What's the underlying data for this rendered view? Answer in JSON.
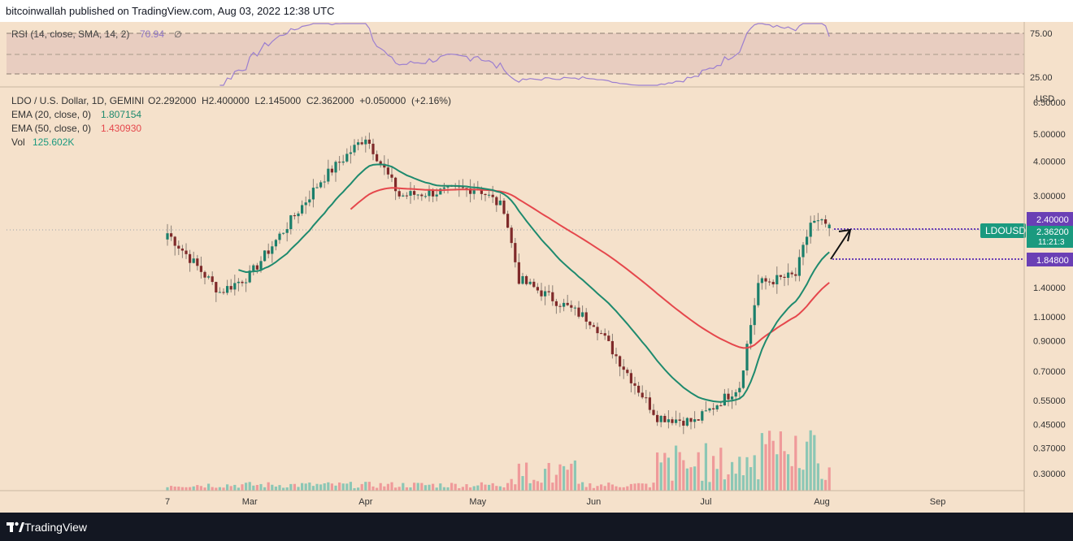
{
  "header": {
    "publisher_text": "bitcoinwallah published on TradingView.com, Aug 03, 2022 12:38 UTC"
  },
  "footer": {
    "brand": "TradingView",
    "logo_icon": "tradingview-logo-icon"
  },
  "legend": {
    "rsi_label": "RSI (14, close, SMA, 14, 2)",
    "rsi_value": "70.94",
    "rsi_suffix": "∅",
    "symbol": "LDO / U.S. Dollar, 1D, GEMINI",
    "ohlc": "O2.292000  H2.400000  L2.145000  C2.362000  +0.050000  (+2.16%)",
    "ema20_label": "EMA (20, close, 0)",
    "ema20_value": "1.807154",
    "ema50_label": "EMA (50, close, 0)",
    "ema50_value": "1.430930",
    "vol_label": "Vol",
    "vol_value": "125.602K"
  },
  "price_axis": {
    "currency": "USD",
    "ticks": [
      "6.50000",
      "5.00000",
      "4.00000",
      "3.00000",
      "1.40000",
      "1.10000",
      "0.90000",
      "0.70000",
      "0.55000",
      "0.45000",
      "0.37000",
      "0.30000"
    ]
  },
  "rsi_axis": {
    "ticks": [
      "75.00",
      "25.00"
    ]
  },
  "time_axis": {
    "labels": [
      "7",
      "Mar",
      "Apr",
      "May",
      "Jun",
      "Jul",
      "Aug",
      "Sep"
    ]
  },
  "price_labels": {
    "symbol_tag": "LDOUSD",
    "high": "2.40000",
    "last": "2.36200",
    "countdown": "11:21:3",
    "low": "1.84800"
  },
  "colors": {
    "background": "#f5e1cb",
    "up": "#1b7f6b",
    "down": "#7f2a2a",
    "ema20": "#1e8a6e",
    "ema50": "#e5474c",
    "rsi": "#9c7fd0",
    "rsi_band": "#e8cdc0",
    "level": "#6a3fb5"
  },
  "chart_data": {
    "type": "candlestick",
    "symbol": "LDO / U.S. Dollar, 1D, GEMINI",
    "y_scale": "log",
    "ylim": [
      0.26,
      7.4
    ],
    "last_candle": {
      "open": 2.292,
      "high": 2.4,
      "low": 2.145,
      "close": 2.362,
      "change": 0.05,
      "change_pct": 2.16
    },
    "key_points": [
      {
        "date": "Feb 07 2022",
        "close": 2.2
      },
      {
        "date": "Feb 21 2022",
        "close": 1.35
      },
      {
        "date": "Mar 01 2022",
        "close": 1.55
      },
      {
        "date": "Mar 20 2022",
        "close": 3.4
      },
      {
        "date": "Apr 01 2022",
        "close": 4.9
      },
      {
        "date": "Apr 10 2022",
        "close": 3.0
      },
      {
        "date": "May 01 2022",
        "close": 3.2
      },
      {
        "date": "May 08 2022",
        "close": 2.7
      },
      {
        "date": "May 12 2022",
        "close": 1.5
      },
      {
        "date": "Jun 01 2022",
        "close": 1.05
      },
      {
        "date": "Jun 13 2022",
        "close": 0.6
      },
      {
        "date": "Jun 18 2022",
        "close": 0.48
      },
      {
        "date": "Jun 28 2022",
        "close": 0.46
      },
      {
        "date": "Jul 10 2022",
        "close": 0.62
      },
      {
        "date": "Jul 15 2022",
        "close": 1.45
      },
      {
        "date": "Jul 25 2022",
        "close": 1.55
      },
      {
        "date": "Jul 29 2022",
        "close": 2.4
      },
      {
        "date": "Aug 03 2022",
        "close": 2.362
      }
    ],
    "ema20": {
      "label": "EMA (20, close, 0)",
      "last": 1.807154
    },
    "ema50": {
      "label": "EMA (50, close, 0)",
      "last": 1.43093
    },
    "volume": {
      "label": "Vol",
      "last": "125.602K"
    },
    "rsi": {
      "label": "RSI (14, close, SMA, 14, 2)",
      "last": 70.94,
      "bands": [
        25,
        75
      ]
    },
    "levels": [
      2.4,
      1.848
    ]
  }
}
